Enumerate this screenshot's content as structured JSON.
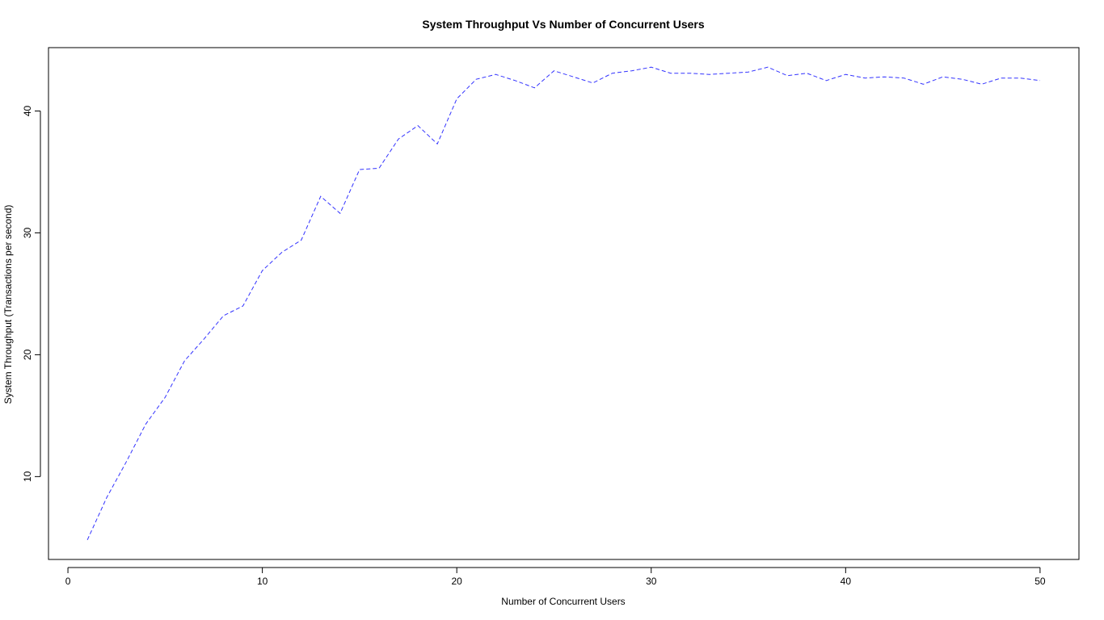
{
  "chart_data": {
    "type": "line",
    "title": "System Throughput Vs Number of Concurrent Users",
    "xlabel": "Number of Concurrent Users",
    "ylabel": "System Throughput (Transactions per second)",
    "xlim": [
      -1,
      52
    ],
    "ylim": [
      3.2,
      45.2
    ],
    "x_ticks": [
      0,
      10,
      20,
      30,
      40,
      50
    ],
    "y_ticks": [
      10,
      20,
      30,
      40
    ],
    "grid": false,
    "line_style": "dashed",
    "series_color": "#3333ff",
    "x": [
      1,
      2,
      3,
      4,
      5,
      6,
      7,
      8,
      9,
      10,
      11,
      12,
      13,
      14,
      15,
      16,
      17,
      18,
      19,
      20,
      21,
      22,
      23,
      24,
      25,
      26,
      27,
      28,
      29,
      30,
      31,
      32,
      33,
      34,
      35,
      36,
      37,
      38,
      39,
      40,
      41,
      42,
      43,
      44,
      45,
      46,
      47,
      48,
      49,
      50
    ],
    "y": [
      4.8,
      8.3,
      11.2,
      14.3,
      16.5,
      19.5,
      21.3,
      23.2,
      24.0,
      26.9,
      28.4,
      29.4,
      33.0,
      31.6,
      35.2,
      35.3,
      37.7,
      38.8,
      37.3,
      41.0,
      42.6,
      43.0,
      42.5,
      41.9,
      43.3,
      42.8,
      42.3,
      43.1,
      43.3,
      43.6,
      43.1,
      43.1,
      43.0,
      43.1,
      43.2,
      43.6,
      42.9,
      43.1,
      42.5,
      43.0,
      42.7,
      42.8,
      42.7,
      42.2,
      42.8,
      42.6,
      42.2,
      42.7,
      42.7,
      42.5
    ]
  }
}
